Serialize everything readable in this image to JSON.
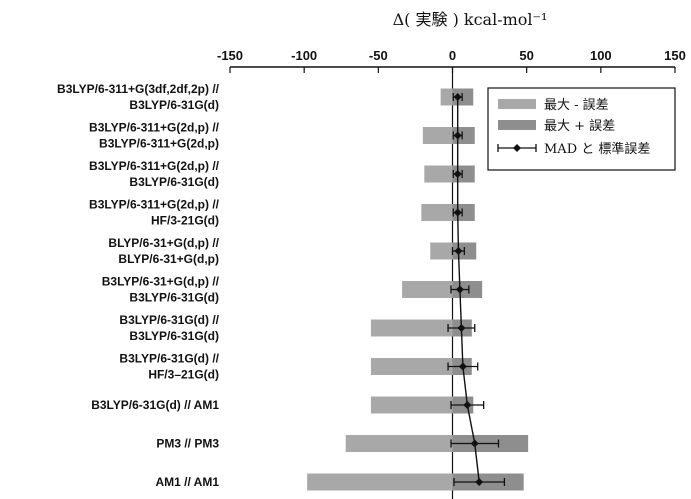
{
  "chart_data": {
    "type": "bar",
    "title": "",
    "xlabel": "Δ( 実験 ) kcal-mol⁻¹",
    "xlim": [
      -150,
      150
    ],
    "xticks": [
      -150,
      -100,
      -50,
      0,
      50,
      100,
      150
    ],
    "grid": false,
    "legend_position": "top-right",
    "categories": [
      [
        "B3LYP/6-311+G(3df,2df,2p) //",
        "B3LYP/6-31G(d)"
      ],
      [
        "B3LYP/6-311+G(2d,p) //",
        "B3LYP/6-311+G(2d,p)"
      ],
      [
        "B3LYP/6-311+G(2d,p) //",
        "B3LYP/6-31G(d)"
      ],
      [
        "B3LYP/6-311+G(2d,p) //",
        "HF/3-21G(d)"
      ],
      [
        "BLYP/6-31+G(d,p) //",
        "BLYP/6-31+G(d,p)"
      ],
      [
        "B3LYP/6-31+G(d,p) //",
        "B3LYP/6-31G(d)"
      ],
      [
        "B3LYP/6-31G(d) //",
        "B3LYP/6-31G(d)"
      ],
      [
        "B3LYP/6-31G(d) //",
        "HF/3–21G(d)"
      ],
      [
        "B3LYP/6-31G(d) // AM1"
      ],
      [
        "PM3 // PM3"
      ],
      [
        "AM1 // AM1"
      ]
    ],
    "series": [
      {
        "name": "最大 - 誤差",
        "color": "#a8a8a8",
        "values": [
          -8,
          -20,
          -19,
          -21,
          -15,
          -34,
          -55,
          -55,
          -55,
          -72,
          -98
        ]
      },
      {
        "name": "最大 + 誤差",
        "color": "#8e8e8e",
        "values": [
          14,
          15,
          15,
          15,
          16,
          20,
          13,
          13,
          14,
          51,
          48
        ]
      },
      {
        "name": "MAD と 標準誤差",
        "color": "#111111",
        "values": [
          3.5,
          3.5,
          3.5,
          3.5,
          4,
          5,
          6,
          7,
          10,
          15,
          18
        ],
        "errors": [
          3,
          3,
          3,
          3,
          4,
          6,
          9,
          10,
          11,
          16,
          17
        ]
      }
    ]
  }
}
